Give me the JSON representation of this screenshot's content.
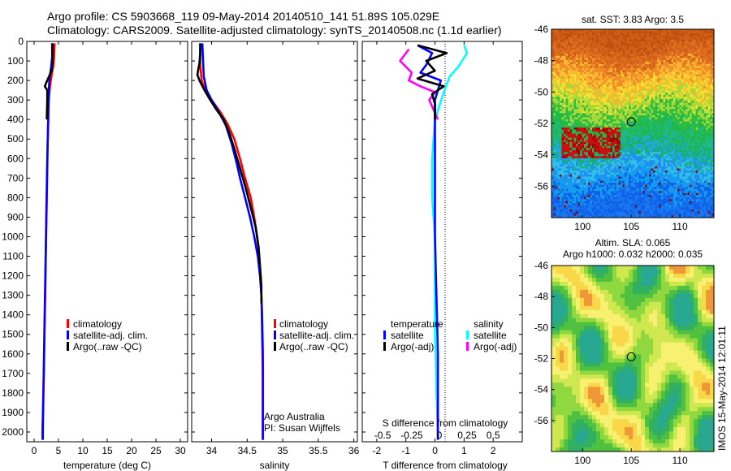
{
  "header": {
    "line1": "Argo profile: CS 5903668_119 09-May-2014 20140510_141 51.89S 105.029E",
    "line2": "Climatology: CARS2009. Satellite-adjusted climatology: synTS_20140508.nc (1.1d earlier)"
  },
  "colors": {
    "climatology": "#ff0000",
    "satellite": "#0000ff",
    "argo": "#000000",
    "salinity_satellite": "#00ffff",
    "salinity_argo": "#ff00ff"
  },
  "chart_data": [
    {
      "type": "line",
      "name": "temperature-profile",
      "xlabel": "temperature (deg C)",
      "xlim": [
        -1.5,
        31.5
      ],
      "xticks": [
        0,
        5,
        10,
        15,
        20,
        25,
        30
      ],
      "ylim": [
        0,
        2050
      ],
      "yticks": [
        0,
        100,
        200,
        300,
        400,
        500,
        600,
        700,
        800,
        900,
        1000,
        1100,
        1200,
        1300,
        1400,
        1500,
        1600,
        1700,
        1800,
        1900,
        2000
      ],
      "legend": [
        "climatology",
        "satellite-adj. clim.",
        "Argo(..raw -QC)"
      ],
      "series": [
        {
          "name": "climatology",
          "color": "#ff0000",
          "points": [
            [
              4.2,
              10
            ],
            [
              4.1,
              80
            ],
            [
              3.9,
              130
            ],
            [
              3.6,
              170
            ],
            [
              3.3,
              220
            ],
            [
              3.0,
              300
            ],
            [
              2.8,
              500
            ],
            [
              2.6,
              800
            ],
            [
              2.4,
              1100
            ],
            [
              2.2,
              1400
            ],
            [
              2.0,
              1700
            ],
            [
              1.8,
              1900
            ],
            [
              1.7,
              2000
            ],
            [
              1.7,
              2040
            ]
          ]
        },
        {
          "name": "satellite",
          "color": "#0000ff",
          "points": [
            [
              3.7,
              10
            ],
            [
              3.7,
              80
            ],
            [
              3.5,
              130
            ],
            [
              3.2,
              180
            ],
            [
              3.0,
              250
            ],
            [
              2.9,
              400
            ],
            [
              2.7,
              600
            ],
            [
              2.5,
              900
            ],
            [
              2.3,
              1200
            ],
            [
              2.1,
              1500
            ],
            [
              1.9,
              1800
            ],
            [
              1.8,
              2000
            ],
            [
              1.8,
              2040
            ]
          ]
        },
        {
          "name": "argo",
          "color": "#000000",
          "points": [
            [
              3.8,
              10
            ],
            [
              3.8,
              100
            ],
            [
              3.6,
              150
            ],
            [
              2.6,
              205
            ],
            [
              2.2,
              230
            ],
            [
              2.7,
              250
            ],
            [
              2.7,
              300
            ],
            [
              2.6,
              400
            ]
          ]
        }
      ]
    },
    {
      "type": "line",
      "name": "salinity-profile",
      "xlabel": "salinity",
      "xlim": [
        33.72,
        36.05
      ],
      "xticks": [
        34,
        34.5,
        35,
        35.5,
        36
      ],
      "ylim": [
        0,
        2050
      ],
      "legend": [
        "climatology",
        "satellite-adj. clim.",
        "Argo(..raw -QC)"
      ],
      "annotation": [
        "Argo Australia",
        "PI: Susan Wijffels"
      ],
      "series": [
        {
          "name": "climatology",
          "color": "#ff0000",
          "points": [
            [
              33.84,
              10
            ],
            [
              33.84,
              120
            ],
            [
              33.86,
              200
            ],
            [
              33.92,
              260
            ],
            [
              34.02,
              310
            ],
            [
              34.12,
              360
            ],
            [
              34.22,
              420
            ],
            [
              34.32,
              500
            ],
            [
              34.4,
              600
            ],
            [
              34.47,
              700
            ],
            [
              34.55,
              800
            ],
            [
              34.6,
              900
            ],
            [
              34.64,
              1000
            ],
            [
              34.67,
              1100
            ],
            [
              34.69,
              1200
            ],
            [
              34.7,
              1300
            ],
            [
              34.71,
              1500
            ],
            [
              34.72,
              1700
            ],
            [
              34.72,
              2040
            ]
          ]
        },
        {
          "name": "satellite",
          "color": "#0000ff",
          "points": [
            [
              33.87,
              10
            ],
            [
              33.88,
              100
            ],
            [
              33.89,
              180
            ],
            [
              33.93,
              250
            ],
            [
              34.0,
              300
            ],
            [
              34.1,
              360
            ],
            [
              34.2,
              430
            ],
            [
              34.28,
              520
            ],
            [
              34.35,
              620
            ],
            [
              34.4,
              700
            ],
            [
              34.47,
              800
            ],
            [
              34.54,
              900
            ],
            [
              34.6,
              1000
            ],
            [
              34.65,
              1100
            ],
            [
              34.68,
              1200
            ],
            [
              34.7,
              1300
            ],
            [
              34.71,
              1400
            ],
            [
              34.72,
              1600
            ],
            [
              34.72,
              1800
            ],
            [
              34.72,
              2040
            ]
          ]
        },
        {
          "name": "argo",
          "color": "#000000",
          "points": [
            [
              33.84,
              10
            ],
            [
              33.84,
              60
            ],
            [
              33.83,
              110
            ],
            [
              33.8,
              170
            ],
            [
              33.83,
              200
            ],
            [
              33.9,
              250
            ],
            [
              33.98,
              300
            ],
            [
              34.07,
              350
            ],
            [
              34.17,
              400
            ],
            [
              34.25,
              470
            ],
            [
              34.32,
              550
            ],
            [
              34.4,
              650
            ],
            [
              34.48,
              750
            ],
            [
              34.55,
              850
            ],
            [
              34.62,
              950
            ],
            [
              34.66,
              1050
            ],
            [
              34.68,
              1150
            ],
            [
              34.7,
              1250
            ],
            [
              34.7,
              1340
            ]
          ]
        }
      ]
    },
    {
      "type": "line",
      "name": "difference-profile",
      "xlabel": "T difference from climatology",
      "xlim": [
        -2.5,
        3
      ],
      "xticks": [
        -2,
        -1,
        0,
        1,
        2
      ],
      "top_axis_label": "S difference from climatology",
      "top_ticks": [
        [
          "-0.5",
          -1.8
        ],
        [
          "-0.25",
          -0.8
        ],
        [
          "0",
          0.15
        ],
        [
          "0.25",
          1.1
        ],
        [
          "0.5",
          2.0
        ]
      ],
      "ylim": [
        0,
        2050
      ],
      "legend_headers": [
        "temperature",
        "salinity"
      ],
      "legend": [
        "satellite",
        "Argo(-adj)",
        "satellite",
        "Argo(-adj)"
      ],
      "series": [
        {
          "name": "S satellite",
          "color": "#00ffff",
          "points": [
            [
              1.0,
              20
            ],
            [
              1.1,
              60
            ],
            [
              0.8,
              130
            ],
            [
              0.5,
              180
            ],
            [
              0.3,
              260
            ],
            [
              0.0,
              400
            ],
            [
              -0.1,
              600
            ],
            [
              -0.1,
              800
            ],
            [
              0.0,
              1000
            ],
            [
              0.0,
              1500
            ],
            [
              0.1,
              2040
            ]
          ]
        },
        {
          "name": "S argo",
          "color": "#ff00ff",
          "points": [
            [
              -0.9,
              40
            ],
            [
              -1.2,
              100
            ],
            [
              -0.8,
              160
            ],
            [
              -0.9,
              200
            ],
            [
              -0.5,
              230
            ],
            [
              0.0,
              260
            ],
            [
              -0.2,
              300
            ],
            [
              0.1,
              400
            ]
          ]
        },
        {
          "name": "T satellite",
          "color": "#0000ff",
          "points": [
            [
              -0.6,
              20
            ],
            [
              -0.1,
              60
            ],
            [
              -0.3,
              120
            ],
            [
              -0.5,
              160
            ],
            [
              0.2,
              200
            ],
            [
              0.0,
              300
            ],
            [
              0.0,
              500
            ],
            [
              0.0,
              800
            ],
            [
              0.0,
              1000
            ],
            [
              0.05,
              1300
            ],
            [
              0.1,
              1600
            ],
            [
              0.1,
              1900
            ],
            [
              0.1,
              2040
            ]
          ]
        },
        {
          "name": "T argo",
          "color": "#000000",
          "points": [
            [
              -0.6,
              20
            ],
            [
              0.4,
              60
            ],
            [
              -0.3,
              100
            ],
            [
              0.0,
              150
            ],
            [
              -0.6,
              190
            ],
            [
              0.3,
              230
            ],
            [
              -0.1,
              270
            ],
            [
              0.0,
              320
            ],
            [
              0.0,
              400
            ]
          ]
        }
      ]
    },
    {
      "type": "heatmap",
      "name": "sst-map",
      "title": "sat. SST: 3.83 Argo: 3.5",
      "xticks": [
        100,
        105,
        110
      ],
      "yticks": [
        -46,
        -48,
        -50,
        -52,
        -54,
        -56
      ],
      "xlim": [
        96.8,
        113.5
      ],
      "ylim": [
        -58,
        -46
      ],
      "marker": [
        105,
        -51.89
      ]
    },
    {
      "type": "heatmap",
      "name": "sla-map",
      "title": [
        "Altim. SLA: 0.065",
        "Argo h1000: 0.032 h2000: 0.035"
      ],
      "xticks": [
        100,
        105,
        110
      ],
      "yticks": [
        -46,
        -48,
        -50,
        -52,
        -54,
        -56
      ],
      "xlim": [
        96.8,
        113.5
      ],
      "ylim": [
        -58,
        -46
      ],
      "marker": [
        105,
        -51.89
      ],
      "side_label": "IMOS 15-May-2014 12:01:11"
    }
  ]
}
